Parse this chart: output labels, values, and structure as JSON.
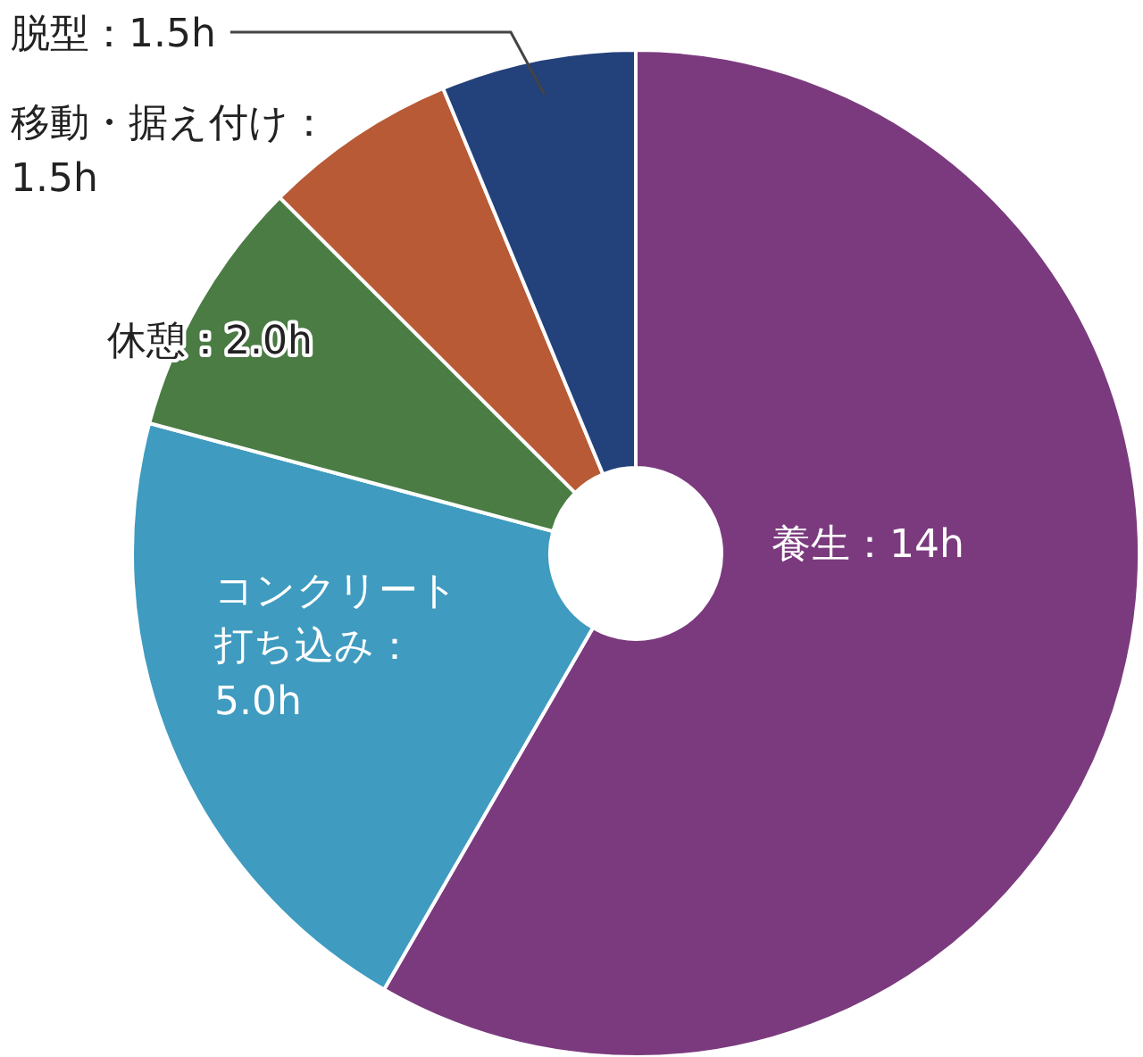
{
  "chart_data": {
    "type": "donut",
    "categories": [
      "養生：14h",
      "コンクリート打ち込み：5.0h",
      "休憩：2.0h",
      "移動・据え付け：1.5h",
      "脱型：1.5h"
    ],
    "values": [
      14,
      5.0,
      2.0,
      1.5,
      1.5
    ],
    "colors": [
      "#7b3a7e",
      "#3f9bbf",
      "#4a7c44",
      "#b85a35",
      "#23417a"
    ]
  }
}
